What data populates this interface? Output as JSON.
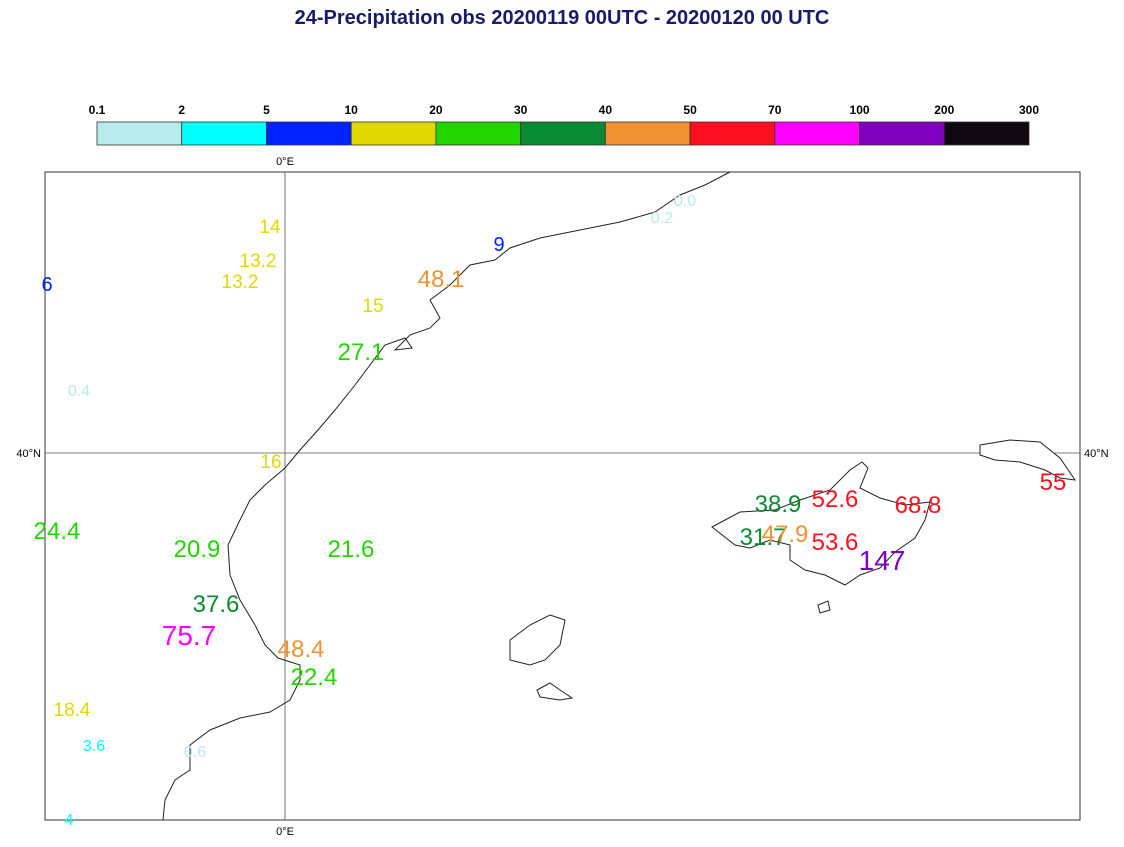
{
  "title": "24-Precipitation obs 20200119 00UTC - 20200120 00 UTC",
  "colorbar": {
    "levels": [
      "0.1",
      "2",
      "5",
      "10",
      "20",
      "30",
      "40",
      "50",
      "70",
      "100",
      "200",
      "300"
    ],
    "colors": [
      "#b8ecec",
      "#00ffff",
      "#0022ff",
      "#e0d800",
      "#22d400",
      "#0a8a32",
      "#f09232",
      "#ff1020",
      "#ff00ff",
      "#8000c0",
      "#100810"
    ]
  },
  "map": {
    "lon_top": "0°E",
    "lon_bottom": "0°E",
    "lat_left": "40°N",
    "lat_right": "40°N"
  },
  "stations": [
    "0.0",
    "0.2",
    "9",
    "48.1",
    "14",
    "13.2",
    "13.2",
    "15",
    "27.1",
    "6",
    "0.4",
    "16",
    "24.4",
    "20.9",
    "21.6",
    "37.6",
    "75.7",
    "48.4",
    "22.4",
    "18.4",
    "3.6",
    "0.6",
    "4",
    "38.9",
    "52.6",
    "68.8",
    "55",
    "31.7",
    "47.9",
    "53.6",
    "147"
  ]
}
